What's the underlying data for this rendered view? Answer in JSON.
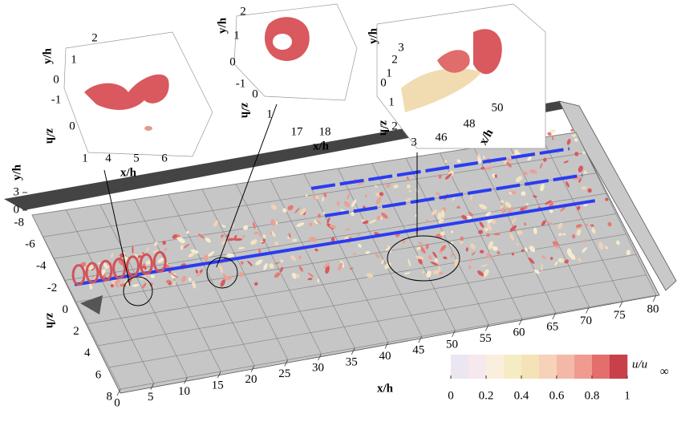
{
  "main": {
    "x_label": "x/h",
    "xlim": [
      0,
      80
    ],
    "xticks": [
      0,
      5,
      10,
      15,
      20,
      25,
      30,
      35,
      40,
      45,
      50,
      55,
      60,
      65,
      70,
      75,
      80
    ],
    "z_label": "z/h",
    "zlim": [
      8,
      -8
    ],
    "zticks": [
      8,
      6,
      4,
      2,
      0,
      -2,
      -4,
      -6,
      -8
    ],
    "y_label": "y/h",
    "ylim": [
      0,
      3
    ],
    "yticks": [
      0,
      3
    ]
  },
  "insets": [
    {
      "y_label": "y/h",
      "yticks": [
        2,
        1,
        0,
        -1
      ],
      "z_label": "z/h",
      "zticks": [
        0,
        1
      ],
      "x_label": "x/h",
      "xticks": [
        4,
        5,
        6
      ]
    },
    {
      "y_label": "y/h",
      "yticks": [
        2,
        1,
        0,
        -1
      ],
      "z_label": "z/h",
      "zticks": [
        0,
        1
      ],
      "x_label": "x/h",
      "xticks": [
        17,
        18
      ]
    },
    {
      "y_label": "y/h",
      "yticks": [
        3,
        2,
        1,
        0
      ],
      "z_label": "z/h",
      "zticks": [
        1,
        2,
        3
      ],
      "x_label": "x/h",
      "xticks": [
        46,
        48,
        50
      ]
    }
  ],
  "colorbar": {
    "label": "u/u",
    "label_subscript": "∞",
    "lim": [
      0,
      1
    ],
    "ticks": [
      0,
      0.2,
      0.4,
      0.6,
      0.8,
      1
    ],
    "colors": [
      "#ece6f2",
      "#f7e8ee",
      "#faeedd",
      "#f6ecc4",
      "#f5e2b6",
      "#f6d2b8",
      "#f4b8a8",
      "#f09a90",
      "#e36e6c",
      "#c8404a"
    ]
  }
}
